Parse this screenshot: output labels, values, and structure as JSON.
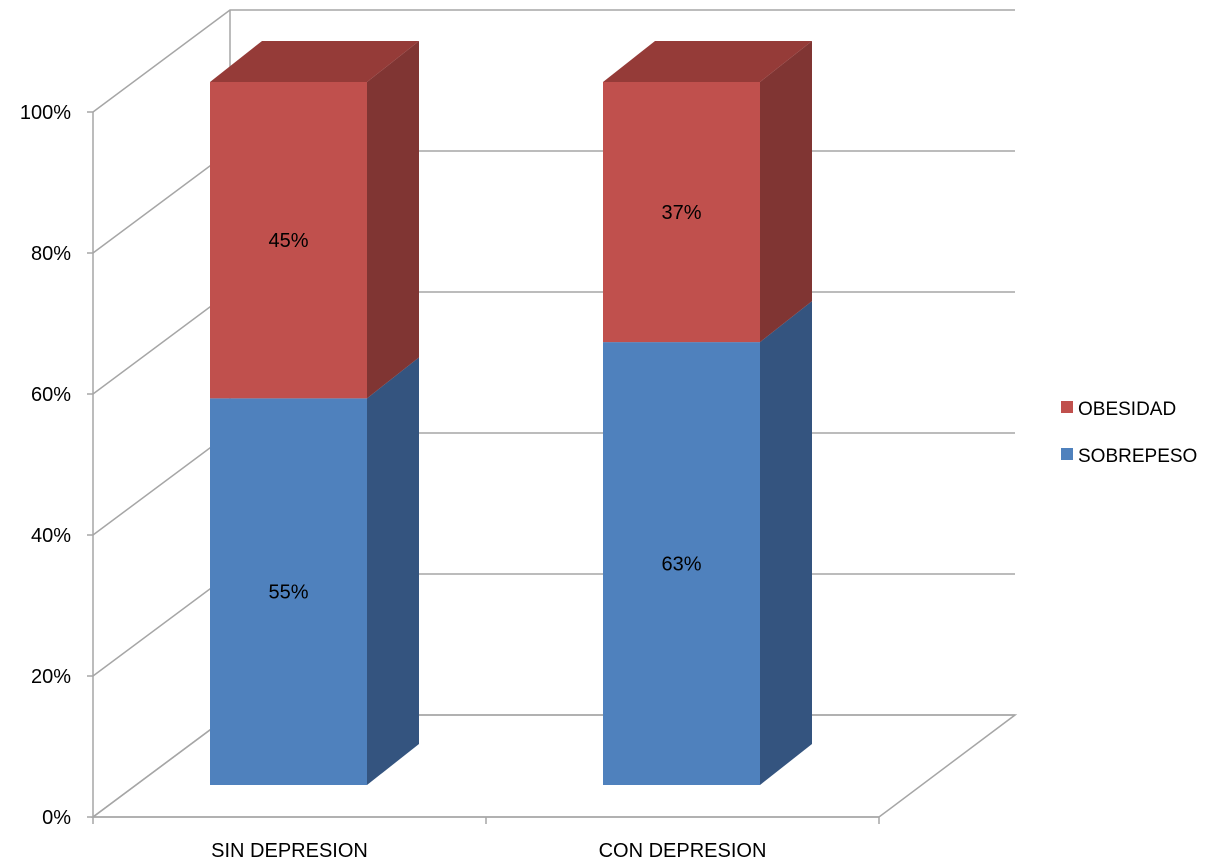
{
  "chart_data": {
    "type": "bar",
    "stacked": true,
    "three_d": true,
    "percent_stacked": true,
    "categories": [
      "SIN DEPRESION",
      "CON DEPRESION"
    ],
    "series": [
      {
        "name": "SOBREPESO",
        "values": [
          55,
          63
        ],
        "labels": [
          "55%",
          "63%"
        ],
        "color": "#4F81BD",
        "side_color": "#34547F"
      },
      {
        "name": "OBESIDAD",
        "values": [
          45,
          37
        ],
        "labels": [
          "45%",
          "37%"
        ],
        "color": "#C0504D",
        "side_color": "#803533",
        "top_color": "#953B38"
      }
    ],
    "title": "",
    "xlabel": "",
    "ylabel": "",
    "ylim": [
      0,
      100
    ],
    "yticks": [
      0,
      20,
      40,
      60,
      80,
      100
    ],
    "ytick_labels": [
      "0%",
      "20%",
      "40%",
      "60%",
      "80%",
      "100%"
    ],
    "grid": true,
    "legend_position": "right",
    "legend_order": [
      "OBESIDAD",
      "SOBREPESO"
    ]
  }
}
